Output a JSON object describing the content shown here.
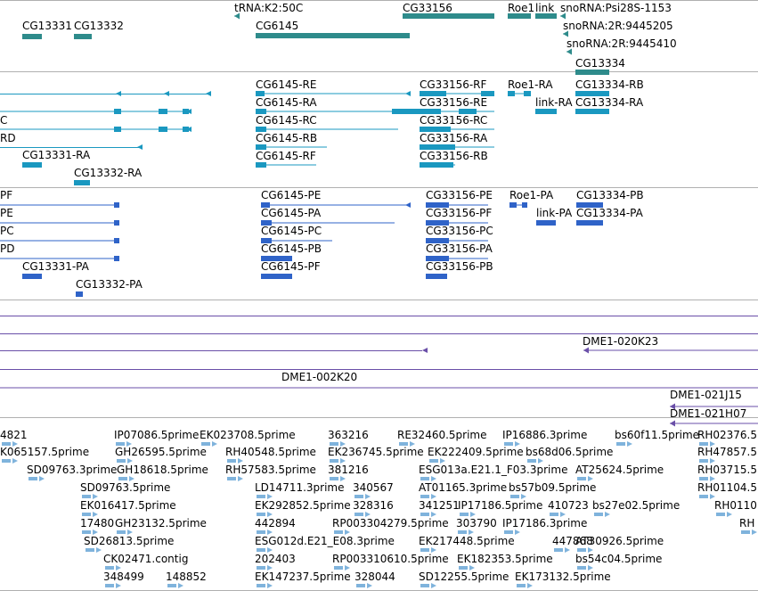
{
  "colors": {
    "gene": "#2e8b8b",
    "mrna": "#1a98c0",
    "cds": "#2f63c8",
    "clone": "#6a4fa8",
    "est": "#7fb3dc",
    "divider": "#b0b0b0"
  },
  "tracks": [
    {
      "id": "genes",
      "features": [
        {
          "label": "CG13331",
          "glyph": "gene"
        },
        {
          "label": "CG13332",
          "glyph": "gene"
        },
        {
          "label": "tRNA:K2:50C",
          "glyph": "arrow-left"
        },
        {
          "label": "CG6145",
          "glyph": "gene"
        },
        {
          "label": "CG33156",
          "glyph": "gene"
        },
        {
          "label": "Roe1",
          "glyph": "gene"
        },
        {
          "label": "link",
          "glyph": "gene"
        },
        {
          "label": "snoRNA:Psi28S-1153",
          "glyph": "arrow-left"
        },
        {
          "label": "snoRNA:2R:9445205",
          "glyph": "arrow-left"
        },
        {
          "label": "snoRNA:2R:9445410",
          "glyph": "arrow-left"
        },
        {
          "label": "CG13334",
          "glyph": "gene"
        }
      ]
    },
    {
      "id": "transcripts",
      "features": [
        {
          "label": "C",
          "glyph": "line"
        },
        {
          "label": "RD",
          "glyph": "line"
        },
        {
          "label": "CG13331-RA",
          "glyph": "transcript"
        },
        {
          "label": "CG13332-RA",
          "glyph": "transcript"
        },
        {
          "label": "CG6145-RE",
          "glyph": "transcript"
        },
        {
          "label": "CG6145-RA",
          "glyph": "transcript"
        },
        {
          "label": "CG6145-RC",
          "glyph": "transcript"
        },
        {
          "label": "CG6145-RB",
          "glyph": "transcript"
        },
        {
          "label": "CG6145-RF",
          "glyph": "transcript"
        },
        {
          "label": "CG33156-RF",
          "glyph": "transcript"
        },
        {
          "label": "CG33156-RE",
          "glyph": "transcript"
        },
        {
          "label": "CG33156-RC",
          "glyph": "transcript"
        },
        {
          "label": "CG33156-RA",
          "glyph": "transcript"
        },
        {
          "label": "CG33156-RB",
          "glyph": "transcript"
        },
        {
          "label": "Roe1-RA",
          "glyph": "transcript"
        },
        {
          "label": "link-RA",
          "glyph": "transcript"
        },
        {
          "label": "CG13334-RB",
          "glyph": "transcript"
        },
        {
          "label": "CG13334-RA",
          "glyph": "transcript"
        }
      ]
    },
    {
      "id": "proteins",
      "features": [
        {
          "label": "PF",
          "glyph": "line"
        },
        {
          "label": "PE",
          "glyph": "line"
        },
        {
          "label": "PC",
          "glyph": "line"
        },
        {
          "label": "PD",
          "glyph": "line"
        },
        {
          "label": "CG13331-PA",
          "glyph": "cds"
        },
        {
          "label": "CG13332-PA",
          "glyph": "cds"
        },
        {
          "label": "CG6145-PE",
          "glyph": "cds"
        },
        {
          "label": "CG6145-PA",
          "glyph": "cds"
        },
        {
          "label": "CG6145-PC",
          "glyph": "cds"
        },
        {
          "label": "CG6145-PB",
          "glyph": "cds"
        },
        {
          "label": "CG6145-PF",
          "glyph": "cds"
        },
        {
          "label": "CG33156-PE",
          "glyph": "cds"
        },
        {
          "label": "CG33156-PF",
          "glyph": "cds"
        },
        {
          "label": "CG33156-PC",
          "glyph": "cds"
        },
        {
          "label": "CG33156-PA",
          "glyph": "cds"
        },
        {
          "label": "CG33156-PB",
          "glyph": "cds"
        },
        {
          "label": "Roe1-PA",
          "glyph": "cds"
        },
        {
          "label": "link-PA",
          "glyph": "cds"
        },
        {
          "label": "CG13334-PB",
          "glyph": "cds"
        },
        {
          "label": "CG13334-PA",
          "glyph": "cds"
        }
      ]
    },
    {
      "id": "clones",
      "features": [
        {
          "label": "DME1-020K23",
          "glyph": "clone"
        },
        {
          "label": "DME1-002K20",
          "glyph": "clone"
        },
        {
          "label": "DME1-021J15",
          "glyph": "clone"
        },
        {
          "label": "DME1-021H07",
          "glyph": "clone"
        }
      ]
    },
    {
      "id": "ests",
      "features": [
        {
          "label": "4821",
          "glyph": "est"
        },
        {
          "label": "IP07086.5prime",
          "glyph": "est"
        },
        {
          "label": "EK023708.5prime",
          "glyph": "est"
        },
        {
          "label": "363216",
          "glyph": "est"
        },
        {
          "label": "RE32460.5prime",
          "glyph": "est"
        },
        {
          "label": "IP16886.3prime",
          "glyph": "est"
        },
        {
          "label": "bs60f11.5prime",
          "glyph": "est"
        },
        {
          "label": "RH02376.5",
          "glyph": "est"
        },
        {
          "label": "K065157.5prime",
          "glyph": "est"
        },
        {
          "label": "GH26595.5prime",
          "glyph": "est"
        },
        {
          "label": "RH40548.5prime",
          "glyph": "est"
        },
        {
          "label": "EK236745.5prime",
          "glyph": "est"
        },
        {
          "label": "EK222409.5prime",
          "glyph": "est"
        },
        {
          "label": "bs68d06.5prime",
          "glyph": "est"
        },
        {
          "label": "RH47857.5",
          "glyph": "est"
        },
        {
          "label": "SD09763.3prime",
          "glyph": "est"
        },
        {
          "label": "GH18618.5prime",
          "glyph": "est"
        },
        {
          "label": "RH57583.5prime",
          "glyph": "est"
        },
        {
          "label": "381216",
          "glyph": "est"
        },
        {
          "label": "ESG013a.E21.1_F03.3prime",
          "glyph": "est"
        },
        {
          "label": "AT25624.5prime",
          "glyph": "est"
        },
        {
          "label": "RH03715.5",
          "glyph": "est"
        },
        {
          "label": "SD09763.5prime",
          "glyph": "est"
        },
        {
          "label": "LD14711.3prime",
          "glyph": "est"
        },
        {
          "label": "340567",
          "glyph": "est"
        },
        {
          "label": "AT01165.3prime",
          "glyph": "est"
        },
        {
          "label": "bs57b09.5prime",
          "glyph": "est"
        },
        {
          "label": "RH01104.5",
          "glyph": "est"
        },
        {
          "label": "EK016417.5prime",
          "glyph": "est"
        },
        {
          "label": "EK292852.5prime",
          "glyph": "est"
        },
        {
          "label": "328316",
          "glyph": "est"
        },
        {
          "label": "341251",
          "glyph": "est"
        },
        {
          "label": "IP17186.5prime",
          "glyph": "est"
        },
        {
          "label": "410723",
          "glyph": "est"
        },
        {
          "label": "bs27e02.5prime",
          "glyph": "est"
        },
        {
          "label": "RH0110",
          "glyph": "est"
        },
        {
          "label": "17480",
          "glyph": "est"
        },
        {
          "label": "GH23132.5prime",
          "glyph": "est"
        },
        {
          "label": "442894",
          "glyph": "est"
        },
        {
          "label": "RP003304279.5prime",
          "glyph": "est"
        },
        {
          "label": "303790",
          "glyph": "est"
        },
        {
          "label": "IP17186.3prime",
          "glyph": "est"
        },
        {
          "label": "RH",
          "glyph": "est"
        },
        {
          "label": "SD26813.5prime",
          "glyph": "est"
        },
        {
          "label": "ESG012d.E21_E08.3prime",
          "glyph": "est"
        },
        {
          "label": "EK217448.5prime",
          "glyph": "est"
        },
        {
          "label": "447868",
          "glyph": "est"
        },
        {
          "label": "AT30926.5prime",
          "glyph": "est"
        },
        {
          "label": "CK02471.contig",
          "glyph": "est"
        },
        {
          "label": "202403",
          "glyph": "est"
        },
        {
          "label": "RP003310610.5prime",
          "glyph": "est"
        },
        {
          "label": "EK182353.5prime",
          "glyph": "est"
        },
        {
          "label": "bs54c04.5prime",
          "glyph": "est"
        },
        {
          "label": "348499",
          "glyph": "est"
        },
        {
          "label": "148852",
          "glyph": "est"
        },
        {
          "label": "EK147237.5prime",
          "glyph": "est"
        },
        {
          "label": "328044",
          "glyph": "est"
        },
        {
          "label": "SD12255.5prime",
          "glyph": "est"
        },
        {
          "label": "EK173132.5prime",
          "glyph": "est"
        }
      ]
    }
  ]
}
